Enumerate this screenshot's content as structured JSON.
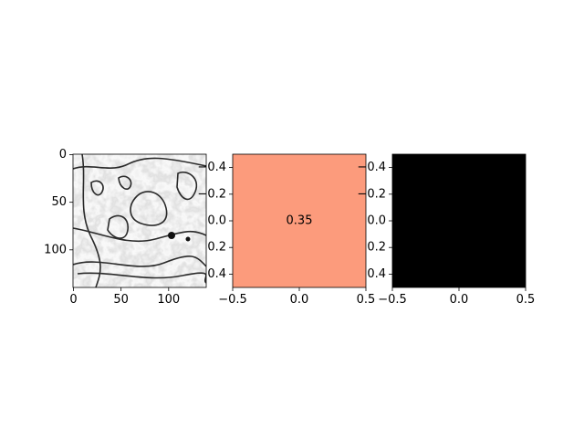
{
  "chart_data": [
    {
      "type": "heatmap",
      "content": "grayscale electron microscopy image",
      "colormap": "gray",
      "xlim": [
        -0.5,
        139.5
      ],
      "ylim": [
        139.5,
        -0.5
      ],
      "x_ticks": [
        "0",
        "50",
        "100"
      ],
      "y_ticks": [
        "0",
        "50",
        "100"
      ]
    },
    {
      "type": "heatmap",
      "values": [
        [
          0.35
        ]
      ],
      "cell_color": "#fc9b7c",
      "annotation": "0.35",
      "xlim": [
        -0.5,
        0.5
      ],
      "ylim": [
        0.5,
        -0.5
      ],
      "x_ticks": [
        "−0.5",
        "0.0",
        "0.5"
      ],
      "y_ticks": [
        "−0.4",
        "−0.2",
        "0.0",
        "0.2",
        "0.4"
      ]
    },
    {
      "type": "heatmap",
      "values": [
        [
          0
        ]
      ],
      "cell_color": "#000000",
      "xlim": [
        -0.5,
        0.5
      ],
      "ylim": [
        0.5,
        -0.5
      ],
      "x_ticks": [
        "−0.5",
        "0.0",
        "0.5"
      ],
      "y_ticks": [
        "−0.4",
        "−0.2",
        "0.0",
        "0.2",
        "0.4"
      ]
    }
  ]
}
